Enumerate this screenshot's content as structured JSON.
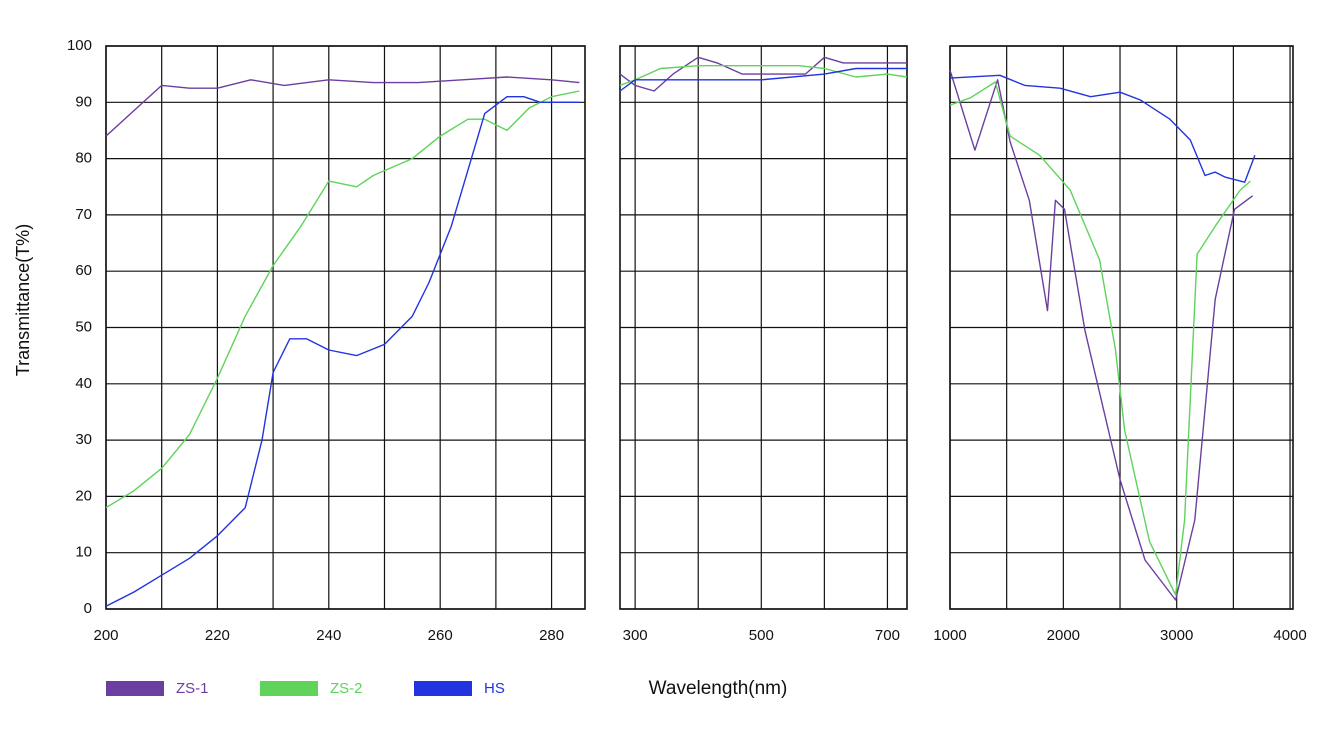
{
  "chart_data": {
    "type": "line",
    "y_label": "Transmittance(T%)",
    "x_label": "Wavelength(nm)",
    "ylim": [
      0,
      100
    ],
    "yticks": [
      0,
      10,
      20,
      30,
      40,
      50,
      60,
      70,
      80,
      90,
      100
    ],
    "grid": true,
    "panels": [
      {
        "xlim": [
          200,
          286
        ],
        "xticks": [
          200,
          220,
          240,
          260,
          280
        ],
        "xgrid": [
          200,
          210,
          220,
          230,
          240,
          250,
          260,
          270,
          280
        ]
      },
      {
        "xlim": [
          276,
          731
        ],
        "xticks": [
          300,
          500,
          700
        ],
        "xgrid": [
          300,
          400,
          500,
          600,
          700
        ]
      },
      {
        "xlim": [
          1000,
          4026
        ],
        "xticks": [
          1000,
          2000,
          3000,
          4000
        ],
        "xgrid": [
          1000,
          1500,
          2000,
          2500,
          3000,
          3500,
          4000
        ]
      }
    ],
    "series": [
      {
        "name": "ZS-1",
        "color": "#6b3fa0",
        "x": [
          [
            200,
            210,
            215,
            220,
            226,
            232,
            240,
            248,
            256,
            264,
            272,
            280,
            285
          ],
          [
            276,
            300,
            330,
            360,
            400,
            430,
            470,
            520,
            570,
            600,
            630,
            660,
            700,
            731
          ],
          [
            1000,
            1220,
            1420,
            1530,
            1700,
            1860,
            1930,
            2010,
            2190,
            2500,
            2720,
            2990,
            3160,
            3340,
            3510,
            3670
          ]
        ],
        "values": [
          [
            84,
            93,
            92.5,
            92.5,
            94,
            93,
            94,
            93.5,
            93.5,
            94,
            94.5,
            94,
            93.5
          ],
          [
            95,
            93,
            92,
            95,
            98,
            97,
            95,
            95,
            95,
            98,
            97,
            97,
            97,
            97
          ],
          [
            95.7,
            81.5,
            94,
            83,
            72.6,
            53,
            72.6,
            71,
            49.5,
            23,
            8.7,
            1.6,
            15.8,
            55,
            71,
            73.4
          ]
        ]
      },
      {
        "name": "ZS-2",
        "color": "#5fd35a",
        "x": [
          [
            200,
            205,
            210,
            215,
            220,
            225,
            230,
            235,
            240,
            245,
            248,
            255,
            260,
            265,
            268,
            272,
            276,
            280,
            285
          ],
          [
            276,
            300,
            340,
            400,
            500,
            560,
            600,
            650,
            700,
            731
          ],
          [
            1000,
            1180,
            1400,
            1530,
            1790,
            2060,
            2320,
            2460,
            2540,
            2760,
            2990,
            3070,
            3180,
            3340,
            3560,
            3650
          ]
        ],
        "values": [
          [
            18,
            21,
            25,
            31,
            41,
            52,
            61,
            68,
            76,
            75,
            77,
            80,
            84,
            87,
            87,
            85,
            89,
            91,
            92
          ],
          [
            93,
            94,
            96,
            96.5,
            96.5,
            96.5,
            96,
            94.5,
            95,
            94.5
          ],
          [
            89.5,
            90.8,
            93.6,
            84,
            80.6,
            74.4,
            62,
            46,
            31.8,
            12,
            2.5,
            15.8,
            63,
            68,
            74.4,
            76
          ]
        ]
      },
      {
        "name": "HS",
        "color": "#2233e0",
        "x": [
          [
            200,
            205,
            210,
            215,
            220,
            225,
            228,
            230,
            233,
            236,
            240,
            245,
            250,
            255,
            258,
            262,
            265,
            268,
            272,
            275,
            278,
            282,
            285
          ],
          [
            276,
            300,
            350,
            400,
            500,
            600,
            650,
            700,
            731
          ],
          [
            1000,
            1440,
            1660,
            1970,
            2240,
            2500,
            2680,
            2940,
            3120,
            3250,
            3340,
            3430,
            3600,
            3690
          ]
        ],
        "values": [
          [
            0.5,
            3,
            6,
            9,
            13,
            18,
            30,
            42,
            48,
            48,
            46,
            45,
            47,
            52,
            58,
            68,
            78,
            88,
            91,
            91,
            90,
            90,
            90
          ],
          [
            92,
            94,
            94,
            94,
            94,
            95,
            96,
            96,
            96
          ],
          [
            94.3,
            94.8,
            93,
            92.5,
            91,
            91.8,
            90.4,
            87,
            83.3,
            77,
            77.6,
            76.7,
            75.8,
            80.6
          ]
        ]
      }
    ]
  }
}
